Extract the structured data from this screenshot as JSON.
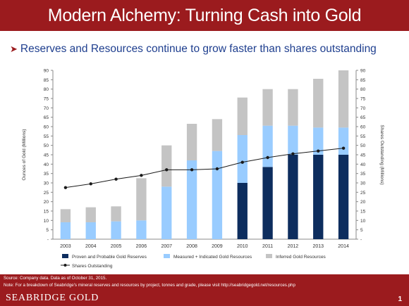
{
  "slide": {
    "title": "Modern Alchemy: Turning Cash into Gold",
    "bullet": "Reserves and Resources continue to grow faster than shares outstanding",
    "source": "Source: Company data.  Data as of October 31, 2015.",
    "note": "Note: For a breakdown of Seabridge's mineral reserves and resources by project, tonnes and grade, please visit http://seabridgegold.net/resources.php",
    "brand": "SEABRIDGE GOLD",
    "page_number": "1"
  },
  "colors": {
    "brand_red": "#9b1b1e",
    "proven_probable": "#0d2d5e",
    "measured_indicated": "#99ccff",
    "inferred": "#c4c4c4",
    "shares_line": "#1a1a1a"
  },
  "chart_data": {
    "type": "bar",
    "stacked": true,
    "categories": [
      "2003",
      "2004",
      "2005",
      "2006",
      "2007",
      "2008",
      "2009",
      "2010",
      "2011",
      "2012",
      "2013",
      "2014"
    ],
    "series": [
      {
        "name": "Proven and Probable Gold Reserves",
        "axis": "left",
        "values": [
          0,
          0,
          0,
          0,
          0,
          0,
          0,
          30,
          38.5,
          45,
          45,
          45
        ]
      },
      {
        "name": "Measured + Indicated Gold Resources",
        "axis": "left",
        "values": [
          9,
          9,
          9.5,
          10,
          28,
          42,
          47,
          25.5,
          22,
          15.5,
          14.5,
          14.5
        ]
      },
      {
        "name": "Inferred Gold Resources",
        "axis": "left",
        "values": [
          7,
          8,
          8,
          22.5,
          22,
          19.5,
          17,
          20,
          19.5,
          19.5,
          26,
          30.5
        ]
      },
      {
        "name": "Shares Outstanding",
        "type": "line",
        "axis": "right",
        "values": [
          27.5,
          29.5,
          32,
          34,
          37,
          37,
          37.5,
          41,
          43.5,
          45.5,
          47,
          48.5
        ]
      }
    ],
    "ylabel": "Ounces of Gold (Millions)",
    "y2label": "Shares Outstanding (Millions)",
    "ylim": [
      0,
      90
    ],
    "y2lim": [
      0,
      90
    ],
    "yticks": [
      "-",
      "5",
      "10",
      "15",
      "20",
      "25",
      "30",
      "35",
      "40",
      "45",
      "50",
      "55",
      "60",
      "65",
      "70",
      "75",
      "80",
      "85",
      "90"
    ],
    "legend_position": "bottom",
    "grid": false
  }
}
